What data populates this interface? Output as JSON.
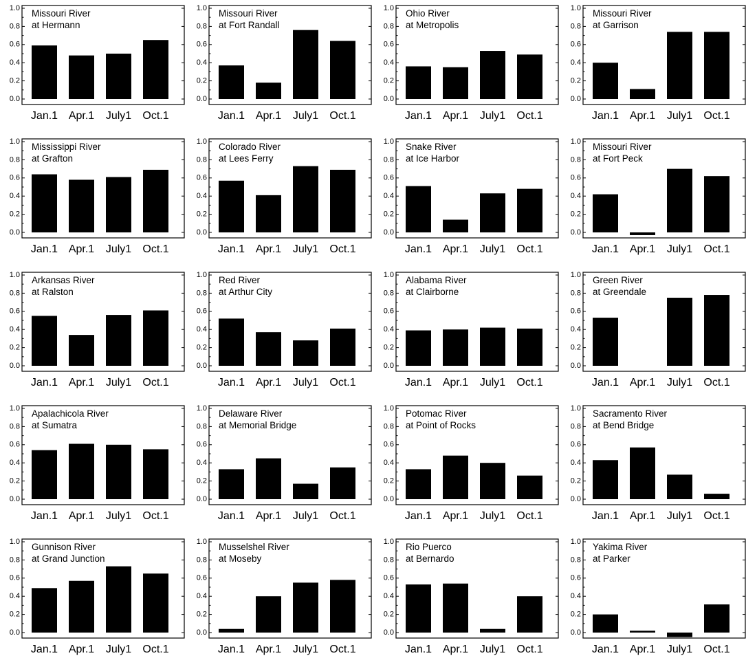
{
  "chart_data": [
    {
      "type": "bar",
      "title_lines": [
        "Missouri River",
        "at Hermann"
      ],
      "categories": [
        "Jan.1",
        "Apr.1",
        "July1",
        "Oct.1"
      ],
      "values": [
        0.59,
        0.48,
        0.5,
        0.65
      ],
      "ylim": [
        0.0,
        1.0
      ],
      "yticks": [
        "0.0",
        "0.2",
        "0.4",
        "0.6",
        "0.8",
        "1.0"
      ]
    },
    {
      "type": "bar",
      "title_lines": [
        "Missouri River",
        "at Fort Randall"
      ],
      "categories": [
        "Jan.1",
        "Apr.1",
        "July1",
        "Oct.1"
      ],
      "values": [
        0.37,
        0.18,
        0.76,
        0.64
      ],
      "ylim": [
        0.0,
        1.0
      ],
      "yticks": [
        "0.0",
        "0.2",
        "0.4",
        "0.6",
        "0.8",
        "1.0"
      ]
    },
    {
      "type": "bar",
      "title_lines": [
        "Ohio River",
        "at Metropolis"
      ],
      "categories": [
        "Jan.1",
        "Apr.1",
        "July1",
        "Oct.1"
      ],
      "values": [
        0.36,
        0.35,
        0.53,
        0.49
      ],
      "ylim": [
        0.0,
        1.0
      ],
      "yticks": [
        "0.0",
        "0.2",
        "0.4",
        "0.6",
        "0.8",
        "1.0"
      ]
    },
    {
      "type": "bar",
      "title_lines": [
        "Missouri River",
        "at Garrison"
      ],
      "categories": [
        "Jan.1",
        "Apr.1",
        "July1",
        "Oct.1"
      ],
      "values": [
        0.4,
        0.11,
        0.74,
        0.74
      ],
      "ylim": [
        0.0,
        1.0
      ],
      "yticks": [
        "0.0",
        "0.2",
        "0.4",
        "0.6",
        "0.8",
        "1.0"
      ]
    },
    {
      "type": "bar",
      "title_lines": [
        "Mississippi River",
        "at Grafton"
      ],
      "categories": [
        "Jan.1",
        "Apr.1",
        "July1",
        "Oct.1"
      ],
      "values": [
        0.64,
        0.58,
        0.61,
        0.69
      ],
      "ylim": [
        0.0,
        1.0
      ],
      "yticks": [
        "0.0",
        "0.2",
        "0.4",
        "0.6",
        "0.8",
        "1.0"
      ]
    },
    {
      "type": "bar",
      "title_lines": [
        "Colorado River",
        "at Lees Ferry"
      ],
      "categories": [
        "Jan.1",
        "Apr.1",
        "July1",
        "Oct.1"
      ],
      "values": [
        0.57,
        0.41,
        0.73,
        0.69
      ],
      "ylim": [
        0.0,
        1.0
      ],
      "yticks": [
        "0.0",
        "0.2",
        "0.4",
        "0.6",
        "0.8",
        "1.0"
      ]
    },
    {
      "type": "bar",
      "title_lines": [
        "Snake River",
        "at Ice Harbor"
      ],
      "categories": [
        "Jan.1",
        "Apr.1",
        "July1",
        "Oct.1"
      ],
      "values": [
        0.51,
        0.14,
        0.43,
        0.48
      ],
      "ylim": [
        0.0,
        1.0
      ],
      "yticks": [
        "0.0",
        "0.2",
        "0.4",
        "0.6",
        "0.8",
        "1.0"
      ]
    },
    {
      "type": "bar",
      "title_lines": [
        "Missouri River",
        "at Fort Peck"
      ],
      "categories": [
        "Jan.1",
        "Apr.1",
        "July1",
        "Oct.1"
      ],
      "values": [
        0.42,
        -0.03,
        0.7,
        0.62
      ],
      "ylim": [
        0.0,
        1.0
      ],
      "yticks": [
        "0.0",
        "0.2",
        "0.4",
        "0.6",
        "0.8",
        "1.0"
      ]
    },
    {
      "type": "bar",
      "title_lines": [
        "Arkansas River",
        "at Ralston"
      ],
      "categories": [
        "Jan.1",
        "Apr.1",
        "July1",
        "Oct.1"
      ],
      "values": [
        0.55,
        0.34,
        0.56,
        0.61
      ],
      "ylim": [
        0.0,
        1.0
      ],
      "yticks": [
        "0.0",
        "0.2",
        "0.4",
        "0.6",
        "0.8",
        "1.0"
      ]
    },
    {
      "type": "bar",
      "title_lines": [
        "Red River",
        "at Arthur City"
      ],
      "categories": [
        "Jan.1",
        "Apr.1",
        "July1",
        "Oct.1"
      ],
      "values": [
        0.52,
        0.37,
        0.28,
        0.41
      ],
      "ylim": [
        0.0,
        1.0
      ],
      "yticks": [
        "0.0",
        "0.2",
        "0.4",
        "0.6",
        "0.8",
        "1.0"
      ]
    },
    {
      "type": "bar",
      "title_lines": [
        "Alabama River",
        "at Clairborne"
      ],
      "categories": [
        "Jan.1",
        "Apr.1",
        "July1",
        "Oct.1"
      ],
      "values": [
        0.39,
        0.4,
        0.42,
        0.41
      ],
      "ylim": [
        0.0,
        1.0
      ],
      "yticks": [
        "0.0",
        "0.2",
        "0.4",
        "0.6",
        "0.8",
        "1.0"
      ]
    },
    {
      "type": "bar",
      "title_lines": [
        "Green River",
        "at Greendale"
      ],
      "categories": [
        "Jan.1",
        "Apr.1",
        "July1",
        "Oct.1"
      ],
      "values": [
        0.53,
        0.0,
        0.75,
        0.78
      ],
      "ylim": [
        0.0,
        1.0
      ],
      "yticks": [
        "0.0",
        "0.2",
        "0.4",
        "0.6",
        "0.8",
        "1.0"
      ]
    },
    {
      "type": "bar",
      "title_lines": [
        "Apalachicola River",
        "at Sumatra"
      ],
      "categories": [
        "Jan.1",
        "Apr.1",
        "July1",
        "Oct.1"
      ],
      "values": [
        0.54,
        0.61,
        0.6,
        0.55
      ],
      "ylim": [
        0.0,
        1.0
      ],
      "yticks": [
        "0.0",
        "0.2",
        "0.4",
        "0.6",
        "0.8",
        "1.0"
      ]
    },
    {
      "type": "bar",
      "title_lines": [
        "Delaware River",
        "at Memorial Bridge"
      ],
      "categories": [
        "Jan.1",
        "Apr.1",
        "July1",
        "Oct.1"
      ],
      "values": [
        0.33,
        0.45,
        0.17,
        0.35
      ],
      "ylim": [
        0.0,
        1.0
      ],
      "yticks": [
        "0.0",
        "0.2",
        "0.4",
        "0.6",
        "0.8",
        "1.0"
      ]
    },
    {
      "type": "bar",
      "title_lines": [
        "Potomac River",
        "at Point of Rocks"
      ],
      "categories": [
        "Jan.1",
        "Apr.1",
        "July1",
        "Oct.1"
      ],
      "values": [
        0.33,
        0.48,
        0.4,
        0.26
      ],
      "ylim": [
        0.0,
        1.0
      ],
      "yticks": [
        "0.0",
        "0.2",
        "0.4",
        "0.6",
        "0.8",
        "1.0"
      ]
    },
    {
      "type": "bar",
      "title_lines": [
        "Sacramento River",
        "at Bend Bridge"
      ],
      "categories": [
        "Jan.1",
        "Apr.1",
        "July1",
        "Oct.1"
      ],
      "values": [
        0.43,
        0.57,
        0.27,
        0.06
      ],
      "ylim": [
        0.0,
        1.0
      ],
      "yticks": [
        "0.0",
        "0.2",
        "0.4",
        "0.6",
        "0.8",
        "1.0"
      ]
    },
    {
      "type": "bar",
      "title_lines": [
        "Gunnison River",
        "at Grand Junction"
      ],
      "categories": [
        "Jan.1",
        "Apr.1",
        "July1",
        "Oct.1"
      ],
      "values": [
        0.49,
        0.57,
        0.73,
        0.65
      ],
      "ylim": [
        0.0,
        1.0
      ],
      "yticks": [
        "0.0",
        "0.2",
        "0.4",
        "0.6",
        "0.8",
        "1.0"
      ]
    },
    {
      "type": "bar",
      "title_lines": [
        "Musselshel River",
        "at Moseby"
      ],
      "categories": [
        "Jan.1",
        "Apr.1",
        "July1",
        "Oct.1"
      ],
      "values": [
        0.04,
        0.4,
        0.55,
        0.58
      ],
      "ylim": [
        0.0,
        1.0
      ],
      "yticks": [
        "0.0",
        "0.2",
        "0.4",
        "0.6",
        "0.8",
        "1.0"
      ]
    },
    {
      "type": "bar",
      "title_lines": [
        "Rio Puerco",
        "at Bernardo"
      ],
      "categories": [
        "Jan.1",
        "Apr.1",
        "July1",
        "Oct.1"
      ],
      "values": [
        0.53,
        0.54,
        0.04,
        0.4
      ],
      "ylim": [
        0.0,
        1.0
      ],
      "yticks": [
        "0.0",
        "0.2",
        "0.4",
        "0.6",
        "0.8",
        "1.0"
      ]
    },
    {
      "type": "bar",
      "title_lines": [
        "Yakima River",
        "at Parker"
      ],
      "categories": [
        "Jan.1",
        "Apr.1",
        "July1",
        "Oct.1"
      ],
      "values": [
        0.2,
        0.02,
        -0.05,
        0.31
      ],
      "ylim": [
        0.0,
        1.0
      ],
      "yticks": [
        "0.0",
        "0.2",
        "0.4",
        "0.6",
        "0.8",
        "1.0"
      ]
    }
  ]
}
